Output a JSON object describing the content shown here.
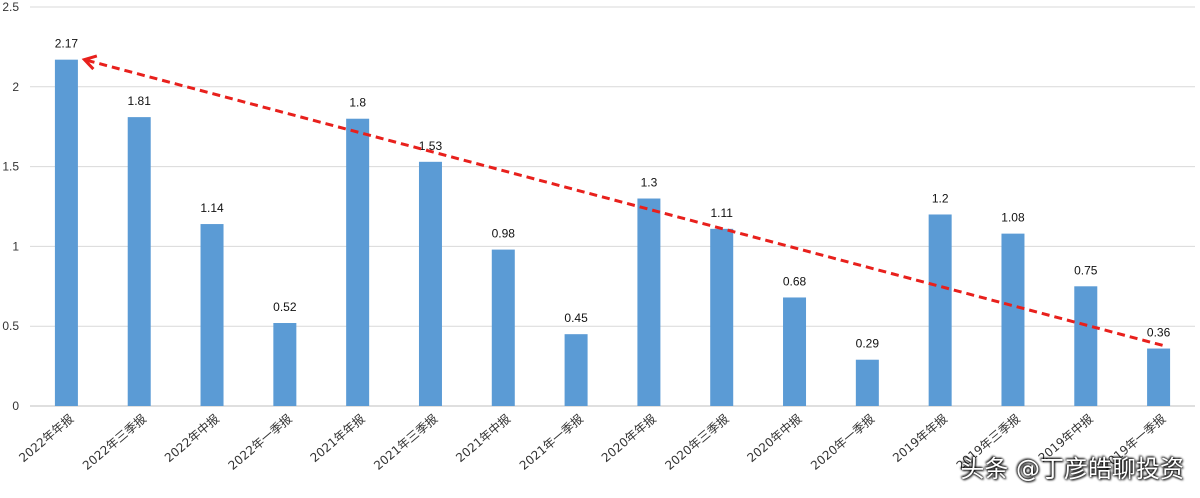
{
  "chart_data": {
    "type": "bar",
    "title": "",
    "xlabel": "",
    "ylabel": "",
    "ylim": [
      0,
      2.5
    ],
    "yticks": [
      "0",
      "0.5",
      "1",
      "1.5",
      "2",
      "2.5"
    ],
    "categories": [
      "2022年年报",
      "2022年三季报",
      "2022年中报",
      "2022年一季报",
      "2021年年报",
      "2021年三季报",
      "2021年中报",
      "2021年一季报",
      "2020年年报",
      "2020年三季报",
      "2020年中报",
      "2020年一季报",
      "2019年年报",
      "2019年三季报",
      "2019年中报",
      "2019年一季报"
    ],
    "values": [
      2.17,
      1.81,
      1.14,
      0.52,
      1.8,
      1.53,
      0.98,
      0.45,
      1.3,
      1.11,
      0.68,
      0.29,
      1.2,
      1.08,
      0.75,
      0.36
    ],
    "value_labels": [
      "2.17",
      "1.81",
      "1.14",
      "0.52",
      "1.8",
      "1.53",
      "0.98",
      "0.45",
      "1.3",
      "1.11",
      "0.68",
      "0.29",
      "1.2",
      "1.08",
      "0.75",
      "0.36"
    ],
    "grid": true,
    "annotations": [
      {
        "type": "trend-arrow",
        "from_category_index": 15,
        "from_value": 0.38,
        "to_category_index": 0,
        "to_value": 2.17,
        "style": "dashed",
        "direction": "toward first bar"
      }
    ]
  },
  "colors": {
    "bar": "#5b9bd5",
    "trend": "#e8201c",
    "grid": "#d9d9d9",
    "axis": "#bfbfbf"
  },
  "watermark": "头条 @丁彦皓聊投资"
}
